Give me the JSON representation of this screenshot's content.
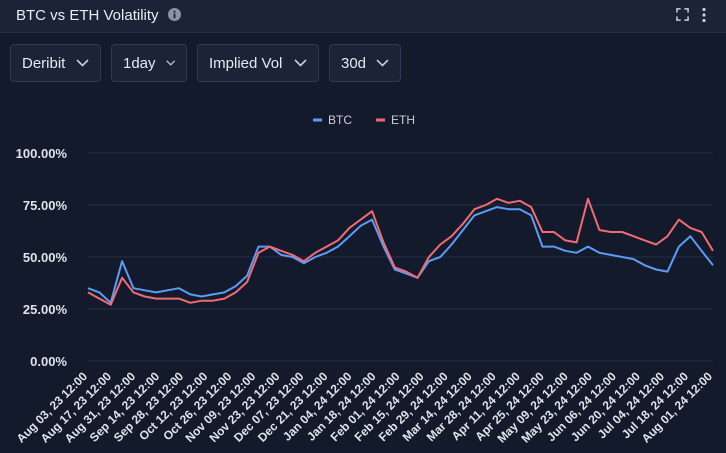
{
  "header": {
    "title": "BTC vs ETH Volatility",
    "icons": [
      "info-icon",
      "expand-icon",
      "more-vertical-icon"
    ]
  },
  "controls": {
    "exchange": "Deribit",
    "interval": "1day",
    "metric": "Implied Vol",
    "tenor": "30d"
  },
  "colors": {
    "background": "#131a2b",
    "btc": "#5b9cf6",
    "eth": "#f26a72",
    "grid": "#262f45"
  },
  "chart_data": {
    "type": "line",
    "legend_position": "top-center",
    "grid": true,
    "ylim": [
      0,
      100
    ],
    "yticks": [
      "0.00%",
      "25.00%",
      "50.00%",
      "75.00%",
      "100.00%"
    ],
    "y_tick_values": [
      0,
      25,
      50,
      75,
      100
    ],
    "xticks": [
      "Aug 03, 23 12:00",
      "Aug 17, 23 12:00",
      "Aug 31, 23 12:00",
      "Sep 14, 23 12:00",
      "Sep 28, 23 12:00",
      "Oct 12, 23 12:00",
      "Oct 26, 23 12:00",
      "Nov 09, 23 12:00",
      "Nov 23, 23 12:00",
      "Dec 07, 23 12:00",
      "Dec 21, 23 12:00",
      "Jan 04, 24 12:00",
      "Jan 18, 24 12:00",
      "Feb 01, 24 12:00",
      "Feb 15, 24 12:00",
      "Feb 29, 24 12:00",
      "Mar 14, 24 12:00",
      "Mar 28, 24 12:00",
      "Apr 11, 24 12:00",
      "Apr 25, 24 12:00",
      "May 09, 24 12:00",
      "May 23, 24 12:00",
      "Jun 06, 24 12:00",
      "Jun 20, 24 12:00",
      "Jul 04, 24 12:00",
      "Jul 18, 24 12:00",
      "Aug 01, 24 12:00"
    ],
    "series": [
      {
        "name": "BTC",
        "color": "#5b9cf6",
        "x": [
          "Aug 03, 23",
          "Aug 10, 23",
          "Aug 17, 23",
          "Aug 19, 23",
          "Aug 24, 23",
          "Aug 31, 23",
          "Sep 07, 23",
          "Sep 14, 23",
          "Sep 21, 23",
          "Sep 28, 23",
          "Oct 05, 23",
          "Oct 12, 23",
          "Oct 19, 23",
          "Oct 22, 23",
          "Oct 26, 23",
          "Nov 02, 23",
          "Nov 09, 23",
          "Nov 16, 23",
          "Nov 23, 23",
          "Nov 30, 23",
          "Dec 07, 23",
          "Dec 14, 23",
          "Dec 21, 23",
          "Dec 28, 23",
          "Jan 04, 24",
          "Jan 11, 24",
          "Jan 18, 24",
          "Jan 25, 24",
          "Feb 01, 24",
          "Feb 08, 24",
          "Feb 15, 24",
          "Feb 22, 24",
          "Feb 29, 24",
          "Mar 07, 24",
          "Mar 14, 24",
          "Mar 21, 24",
          "Mar 28, 24",
          "Apr 04, 24",
          "Apr 11, 24",
          "Apr 18, 24",
          "Apr 25, 24",
          "May 02, 24",
          "May 09, 24",
          "May 16, 24",
          "May 23, 24",
          "May 30, 24",
          "Jun 06, 24",
          "Jun 13, 24",
          "Jun 20, 24",
          "Jun 27, 24",
          "Jul 04, 24",
          "Jul 11, 24",
          "Jul 18, 24",
          "Jul 25, 24",
          "Aug 01, 24",
          "Aug 04, 24"
        ],
        "values": [
          35,
          33,
          28,
          48,
          35,
          34,
          33,
          34,
          35,
          32,
          31,
          32,
          33,
          36,
          41,
          55,
          55,
          51,
          50,
          47,
          50,
          52,
          55,
          60,
          65,
          68,
          55,
          44,
          42,
          40,
          48,
          50,
          56,
          63,
          70,
          72,
          74,
          73,
          73,
          70,
          55,
          55,
          53,
          52,
          55,
          52,
          51,
          50,
          49,
          46,
          44,
          43,
          55,
          60,
          53,
          46
        ]
      },
      {
        "name": "ETH",
        "color": "#f26a72",
        "x": [
          "Aug 03, 23",
          "Aug 10, 23",
          "Aug 17, 23",
          "Aug 19, 23",
          "Aug 24, 23",
          "Aug 31, 23",
          "Sep 07, 23",
          "Sep 14, 23",
          "Sep 21, 23",
          "Sep 28, 23",
          "Oct 05, 23",
          "Oct 12, 23",
          "Oct 19, 23",
          "Oct 22, 23",
          "Oct 26, 23",
          "Nov 02, 23",
          "Nov 09, 23",
          "Nov 16, 23",
          "Nov 23, 23",
          "Nov 30, 23",
          "Dec 07, 23",
          "Dec 14, 23",
          "Dec 21, 23",
          "Dec 28, 23",
          "Jan 04, 24",
          "Jan 11, 24",
          "Jan 18, 24",
          "Jan 25, 24",
          "Feb 01, 24",
          "Feb 08, 24",
          "Feb 15, 24",
          "Feb 22, 24",
          "Feb 29, 24",
          "Mar 07, 24",
          "Mar 14, 24",
          "Mar 21, 24",
          "Mar 28, 24",
          "Apr 04, 24",
          "Apr 11, 24",
          "Apr 18, 24",
          "Apr 25, 24",
          "May 02, 24",
          "May 09, 24",
          "May 16, 24",
          "May 23, 24",
          "May 30, 24",
          "Jun 06, 24",
          "Jun 13, 24",
          "Jun 20, 24",
          "Jun 27, 24",
          "Jul 04, 24",
          "Jul 11, 24",
          "Jul 18, 24",
          "Jul 25, 24",
          "Aug 01, 24",
          "Aug 04, 24"
        ],
        "values": [
          33,
          30,
          27,
          40,
          33,
          31,
          30,
          30,
          30,
          28,
          29,
          29,
          30,
          33,
          38,
          52,
          55,
          53,
          51,
          48,
          52,
          55,
          58,
          64,
          68,
          72,
          57,
          45,
          43,
          40,
          50,
          56,
          60,
          66,
          73,
          75,
          78,
          76,
          77,
          74,
          62,
          62,
          58,
          57,
          78,
          63,
          62,
          62,
          60,
          58,
          56,
          60,
          68,
          64,
          62,
          53
        ]
      }
    ]
  }
}
